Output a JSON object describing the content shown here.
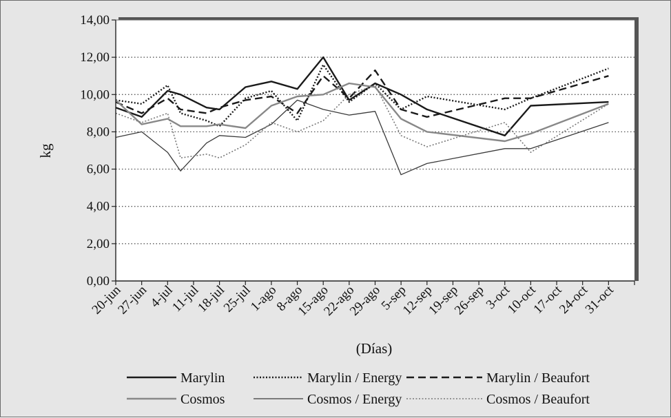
{
  "chart_data": {
    "type": "line",
    "xlabel": "(Días)",
    "ylabel": "kg",
    "ylim": [
      0,
      14
    ],
    "yticks": [
      "0,00",
      "2,00",
      "4,00",
      "6,00",
      "8,00",
      "10,00",
      "12,00",
      "14,00"
    ],
    "categories": [
      "20-jun",
      "27-jun",
      "4-jul",
      "11-jul",
      "18-jul",
      "25-jul",
      "1-ago",
      "8-ago",
      "15-ago",
      "22-ago",
      "29-ago",
      "5-sep",
      "12-sep",
      "19-sep",
      "26-sep",
      "3-oct",
      "10-oct",
      "17-oct",
      "24-oct",
      "31-oct"
    ],
    "grid": "horizontal dotted",
    "legend_position": "bottom",
    "series": [
      {
        "name": "Marylin",
        "style": "solid-thick",
        "color": "#1a1a1a",
        "points": [
          [
            0,
            9.3
          ],
          [
            1,
            8.8
          ],
          [
            2,
            10.2
          ],
          [
            2.5,
            10.0
          ],
          [
            3.5,
            9.3
          ],
          [
            4,
            9.2
          ],
          [
            5,
            10.4
          ],
          [
            6,
            10.7
          ],
          [
            7,
            10.3
          ],
          [
            8,
            12.0
          ],
          [
            9,
            9.7
          ],
          [
            10,
            10.6
          ],
          [
            11,
            10.0
          ],
          [
            12,
            9.2
          ],
          [
            15,
            7.8
          ],
          [
            16,
            9.4
          ],
          [
            19,
            9.6
          ]
        ]
      },
      {
        "name": "Marylin / Energy",
        "style": "dotted-thick",
        "color": "#1a1a1a",
        "points": [
          [
            0,
            9.7
          ],
          [
            1,
            9.5
          ],
          [
            2,
            10.5
          ],
          [
            2.5,
            9.0
          ],
          [
            3.5,
            8.6
          ],
          [
            4,
            8.3
          ],
          [
            5,
            9.8
          ],
          [
            6,
            10.2
          ],
          [
            7,
            8.6
          ],
          [
            8,
            11.6
          ],
          [
            9,
            9.6
          ],
          [
            10,
            10.6
          ],
          [
            11,
            9.2
          ],
          [
            12,
            9.9
          ],
          [
            15,
            9.2
          ],
          [
            16,
            9.8
          ],
          [
            19,
            11.4
          ]
        ]
      },
      {
        "name": "Marylin / Beaufort",
        "style": "dashed-thick",
        "color": "#1a1a1a",
        "points": [
          [
            0,
            9.6
          ],
          [
            1,
            9.0
          ],
          [
            2,
            9.8
          ],
          [
            2.5,
            9.2
          ],
          [
            3.5,
            9.0
          ],
          [
            4,
            9.3
          ],
          [
            5,
            9.7
          ],
          [
            6,
            9.9
          ],
          [
            7,
            9.0
          ],
          [
            8,
            11.0
          ],
          [
            9,
            9.8
          ],
          [
            10,
            11.3
          ],
          [
            11,
            9.2
          ],
          [
            12,
            8.8
          ],
          [
            15,
            9.8
          ],
          [
            16,
            9.8
          ],
          [
            19,
            11.0
          ]
        ]
      },
      {
        "name": "Cosmos",
        "style": "solid-thick",
        "color": "#888888",
        "points": [
          [
            0,
            9.7
          ],
          [
            1,
            8.4
          ],
          [
            2,
            8.7
          ],
          [
            2.5,
            8.3
          ],
          [
            3.5,
            8.3
          ],
          [
            4,
            8.4
          ],
          [
            5,
            8.2
          ],
          [
            6,
            9.4
          ],
          [
            7,
            9.9
          ],
          [
            8,
            10.0
          ],
          [
            9,
            10.6
          ],
          [
            10,
            10.4
          ],
          [
            11,
            8.7
          ],
          [
            12,
            8.0
          ],
          [
            15,
            7.5
          ],
          [
            16,
            7.9
          ],
          [
            19,
            9.5
          ]
        ]
      },
      {
        "name": "Cosmos / Energy",
        "style": "solid-thin",
        "color": "#3a3a3a",
        "points": [
          [
            0,
            7.7
          ],
          [
            1,
            8.0
          ],
          [
            2,
            6.9
          ],
          [
            2.5,
            5.9
          ],
          [
            3.5,
            7.4
          ],
          [
            4,
            7.8
          ],
          [
            5,
            7.7
          ],
          [
            6,
            8.4
          ],
          [
            7,
            9.7
          ],
          [
            8,
            9.2
          ],
          [
            9,
            8.9
          ],
          [
            10,
            9.1
          ],
          [
            11,
            5.7
          ],
          [
            12,
            6.3
          ],
          [
            15,
            7.1
          ],
          [
            16,
            7.1
          ],
          [
            19,
            8.5
          ]
        ]
      },
      {
        "name": "Cosmos / Beaufort",
        "style": "dotted-thin",
        "color": "#777777",
        "points": [
          [
            0,
            9.0
          ],
          [
            1,
            8.5
          ],
          [
            2,
            9.0
          ],
          [
            2.5,
            6.6
          ],
          [
            3.5,
            6.8
          ],
          [
            4,
            6.6
          ],
          [
            5,
            7.3
          ],
          [
            6,
            8.5
          ],
          [
            7,
            8.0
          ],
          [
            8,
            8.6
          ],
          [
            9,
            10.0
          ],
          [
            10,
            10.5
          ],
          [
            11,
            7.8
          ],
          [
            12,
            7.2
          ],
          [
            15,
            8.5
          ],
          [
            16,
            6.9
          ],
          [
            19,
            9.5
          ]
        ]
      }
    ]
  }
}
